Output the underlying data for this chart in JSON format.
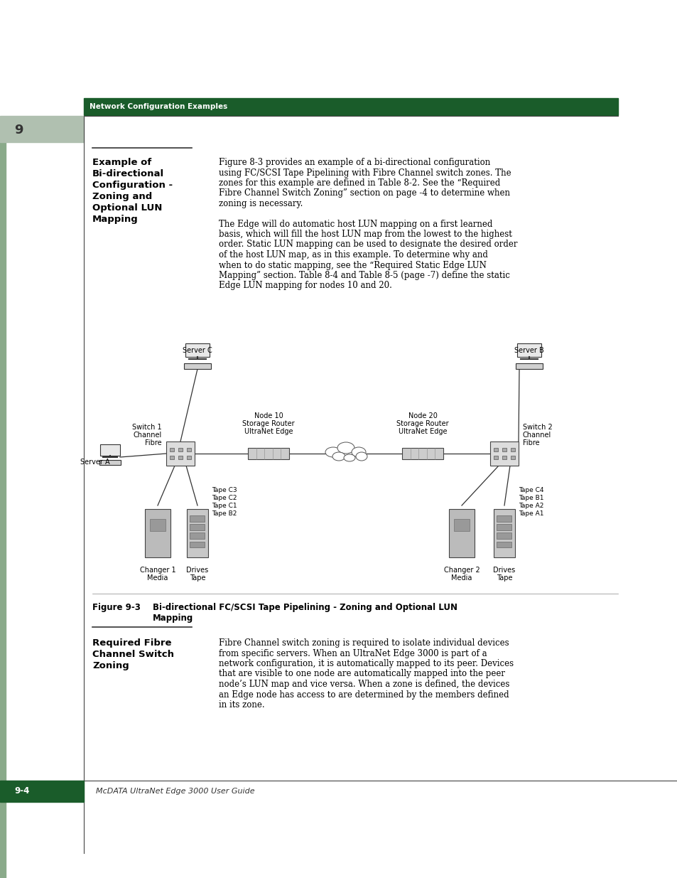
{
  "page_bg": "#ffffff",
  "header_bar_color": "#1a5c2a",
  "header_text": "Network Configuration Examples",
  "header_text_color": "#ffffff",
  "tab_bg_color": "#b0c0b0",
  "tab_number": "9",
  "sidebar_color": "#8aaa8a",
  "section_title_1_lines": [
    "Example of",
    "Bi-directional",
    "Configuration -",
    "Zoning and",
    "Optional LUN",
    "Mapping"
  ],
  "body_text_1_lines": [
    "Figure 8-3 provides an example of a bi-directional configuration",
    "using FC/SCSI Tape Pipelining with Fibre Channel switch zones. The",
    "zones for this example are defined in Table 8-2. See the “Required",
    "Fibre Channel Switch Zoning” section on page -4 to determine when",
    "zoning is necessary."
  ],
  "body_text_2_lines": [
    "The Edge will do automatic host LUN mapping on a first learned",
    "basis, which will fill the host LUN map from the lowest to the highest",
    "order. Static LUN mapping can be used to designate the desired order",
    "of the host LUN map, as in this example. To determine why and",
    "when to do static mapping, see the “Required Static Edge LUN",
    "Mapping” section. Table 8-4 and Table 8-5 (page -7) define the static",
    "Edge LUN mapping for nodes 10 and 20."
  ],
  "figure_label": "Figure 9-3",
  "figure_caption_line1": "Bi-directional FC/SCSI Tape Pipelining - Zoning and Optional LUN",
  "figure_caption_line2": "Mapping",
  "section_title_2_lines": [
    "Required Fibre",
    "Channel Switch",
    "Zoning"
  ],
  "body_text_3_lines": [
    "Fibre Channel switch zoning is required to isolate individual devices",
    "from specific servers. When an UltraNet Edge 3000 is part of a",
    "network configuration, it is automatically mapped to its peer. Devices",
    "that are visible to one node are automatically mapped into the peer",
    "node’s LUN map and vice versa. When a zone is defined, the devices",
    "an Edge node has access to are determined by the members defined",
    "in its zone."
  ],
  "footer_page": "9-4",
  "footer_title": "McDATA UltraNet Edge 3000 User Guide",
  "diagram": {
    "server_c_label": "Server C",
    "server_b_label": "Server B",
    "server_a_label": "Server A",
    "fc_switch_1_lines": [
      "Fibre",
      "Channel",
      "Switch 1"
    ],
    "fc_switch_2_lines": [
      "Fibre",
      "Channel",
      "Switch 2"
    ],
    "node10_lines": [
      "UltraNet Edge",
      "Storage Router",
      "Node 10"
    ],
    "node20_lines": [
      "UltraNet Edge",
      "Storage Router",
      "Node 20"
    ],
    "media_changer_1": [
      "Media",
      "Changer 1"
    ],
    "tape_drives_1": [
      "Tape",
      "Drives"
    ],
    "media_changer_2": [
      "Media",
      "Changer 2"
    ],
    "tape_drives_2": [
      "Tape",
      "Drives"
    ],
    "tape_left": [
      "Tape B2",
      "Tape C1",
      "Tape C2",
      "Tape C3"
    ],
    "tape_right": [
      "Tape A1",
      "Tape A2",
      "Tape B1",
      "Tape C4"
    ]
  }
}
